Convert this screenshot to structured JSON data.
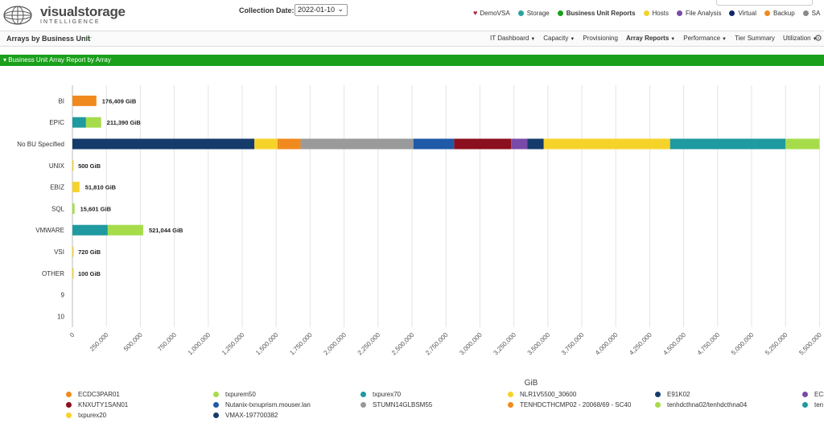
{
  "app": {
    "logo_text": "visualstorage",
    "logo_sub": "INTELLIGENCE"
  },
  "header": {
    "collection_label": "Collection Date:",
    "collection_value": "2022-01-10",
    "nav": [
      {
        "label": "DemoVSA",
        "icon": "heart-icon",
        "color": "#b0243a"
      },
      {
        "label": "Storage",
        "icon": "dot",
        "color": "#2aa3a3"
      },
      {
        "label": "Business Unit Reports",
        "icon": "dot",
        "color": "#1aa01a",
        "bold": true
      },
      {
        "label": "Hosts",
        "icon": "dot",
        "color": "#f2d32a"
      },
      {
        "label": "File Analysis",
        "icon": "dot",
        "color": "#7a4aa8"
      },
      {
        "label": "Virtual",
        "icon": "dot",
        "color": "#13266b"
      },
      {
        "label": "Backup",
        "icon": "dot",
        "color": "#f08a1e"
      },
      {
        "label": "SA",
        "icon": "dot",
        "color": "#888888"
      }
    ]
  },
  "subbar": {
    "title": "Arrays by Business Unit",
    "menu": [
      {
        "label": "IT Dashboard",
        "dropdown": true
      },
      {
        "label": "Capacity",
        "dropdown": true
      },
      {
        "label": "Provisioning",
        "dropdown": false
      },
      {
        "label": "Array Reports",
        "dropdown": true,
        "bold": true
      },
      {
        "label": "Performance",
        "dropdown": true
      },
      {
        "label": "Tier Summary",
        "dropdown": false
      },
      {
        "label": "Utilization",
        "dropdown": true
      }
    ]
  },
  "section": {
    "title": "Business Unit Array Report by Array"
  },
  "chart_data": {
    "type": "bar",
    "orientation": "horizontal",
    "stacked": true,
    "xlabel": "GiB",
    "xlim": [
      0,
      5500000
    ],
    "x_ticks": [
      "0",
      "250,000",
      "500,000",
      "750,000",
      "1,000,000",
      "1,250,000",
      "1,500,000",
      "1,750,000",
      "2,000,000",
      "2,250,000",
      "2,500,000",
      "2,750,000",
      "3,000,000",
      "3,250,000",
      "3,500,000",
      "3,750,000",
      "4,000,000",
      "4,250,000",
      "4,500,000",
      "4,750,000",
      "5,000,000",
      "5,250,000",
      "5,500,000"
    ],
    "x_tick_values": [
      0,
      250000,
      500000,
      750000,
      1000000,
      1250000,
      1500000,
      1750000,
      2000000,
      2250000,
      2500000,
      2750000,
      3000000,
      3250000,
      3500000,
      3750000,
      4000000,
      4250000,
      4500000,
      4750000,
      5000000,
      5250000,
      5500000
    ],
    "grid": true,
    "legend_position": "bottom",
    "categories": [
      "BI",
      "EPIC",
      "No BU Specified",
      "UNIX",
      "EBIZ",
      "SQL",
      "VMWARE",
      "VSI",
      "OTHER",
      "9",
      "10"
    ],
    "total_labels": [
      "176,409 GiB",
      "211,390 GiB",
      "",
      "500 GiB",
      "51,810 GiB",
      "15,601 GiB",
      "521,044 GiB",
      "720 GiB",
      "100 GiB",
      "",
      ""
    ],
    "bars": [
      {
        "category": "BI",
        "segments": [
          {
            "series": "TENHDCTHCMP02 - 20068/69 - SC40",
            "value": 176409
          }
        ]
      },
      {
        "category": "EPIC",
        "segments": [
          {
            "series": "txpurex70",
            "value": 100000
          },
          {
            "series": "tenhdcthna02/tenhdcthna04",
            "value": 111390
          }
        ]
      },
      {
        "category": "No BU Specified",
        "segments": [
          {
            "series": "VMAX-197700382",
            "value": 1340000
          },
          {
            "series": "NLR1V5500_30600",
            "value": 170000
          },
          {
            "series": "TENHDCTHCMP02 - 20068/69 - SC40",
            "value": 170000
          },
          {
            "series": "STUMN14GLBSM55",
            "value": 830000
          },
          {
            "series": "Nutanix-txnuprism.mouser.lan",
            "value": 300000
          },
          {
            "series": "KNXUTY1SAN01",
            "value": 420000
          },
          {
            "series": "ECS",
            "value": 120000
          },
          {
            "series": "E91K02",
            "value": 120000
          },
          {
            "series": "txpurex20",
            "value": 930000
          },
          {
            "series": "txpurex70",
            "value": 850000
          },
          {
            "series": "tenhdcthna02/tenhdcthna04",
            "value": 250000
          }
        ]
      },
      {
        "category": "UNIX",
        "segments": [
          {
            "series": "txpurex20",
            "value": 500
          }
        ]
      },
      {
        "category": "EBIZ",
        "segments": [
          {
            "series": "txpurex20",
            "value": 51810
          }
        ]
      },
      {
        "category": "SQL",
        "segments": [
          {
            "series": "tenhdcthna02/tenhdcthna04",
            "value": 15601
          }
        ]
      },
      {
        "category": "VMWARE",
        "segments": [
          {
            "series": "txpurex70",
            "value": 260000
          },
          {
            "series": "tenhdcthna02/tenhdcthna04",
            "value": 261044
          }
        ]
      },
      {
        "category": "VSI",
        "segments": [
          {
            "series": "txpurex20",
            "value": 720
          }
        ]
      },
      {
        "category": "OTHER",
        "segments": [
          {
            "series": "txpurex20",
            "value": 100
          }
        ]
      },
      {
        "category": "9",
        "segments": []
      },
      {
        "category": "10",
        "segments": []
      }
    ],
    "series_colors": {
      "ECDC3PAR01": "#f08a1e",
      "KNXUTY1SAN01": "#8b0f1e",
      "txpurex20": "#f6d32a",
      "txpurem50": "#a6dc4a",
      "Nutanix-txnuprism.mouser.lan": "#1f5aa8",
      "VMAX-197700382": "#153b6b",
      "txpurex70": "#1f9aa0",
      "STUMN14GLBSM55": "#9a9a9a",
      "NLR1V5500_30600": "#f6d32a",
      "TENHDCTHCMP02 - 20068/69 - SC40": "#f08a1e",
      "E91K02": "#153b6b",
      "tenhdcthna02/tenhdcthna04": "#a6dc4a",
      "ECS": "#7a4aa8",
      "ten": "#1f9aa0"
    }
  },
  "legend": [
    {
      "label": "ECDC3PAR01",
      "color": "#f08a1e"
    },
    {
      "label": "txpurem50",
      "color": "#a6dc4a"
    },
    {
      "label": "txpurex70",
      "color": "#1f9aa0"
    },
    {
      "label": "NLR1V5500_30600",
      "color": "#f6d32a"
    },
    {
      "label": "E91K02",
      "color": "#153b6b"
    },
    {
      "label": "ECS",
      "color": "#7a4aa8"
    },
    {
      "label": "KNXUTY1SAN01",
      "color": "#8b0f1e"
    },
    {
      "label": "Nutanix-txnuprism.mouser.lan",
      "color": "#1f5aa8"
    },
    {
      "label": "STUMN14GLBSM55",
      "color": "#9a9a9a"
    },
    {
      "label": "TENHDCTHCMP02 - 20068/69 - SC40",
      "color": "#f08a1e"
    },
    {
      "label": "tenhdcthna02/tenhdcthna04",
      "color": "#a6dc4a"
    },
    {
      "label": "ten",
      "color": "#1f9aa0"
    },
    {
      "label": "txpurex20",
      "color": "#f6d32a"
    },
    {
      "label": "VMAX-197700382",
      "color": "#153b6b"
    }
  ]
}
